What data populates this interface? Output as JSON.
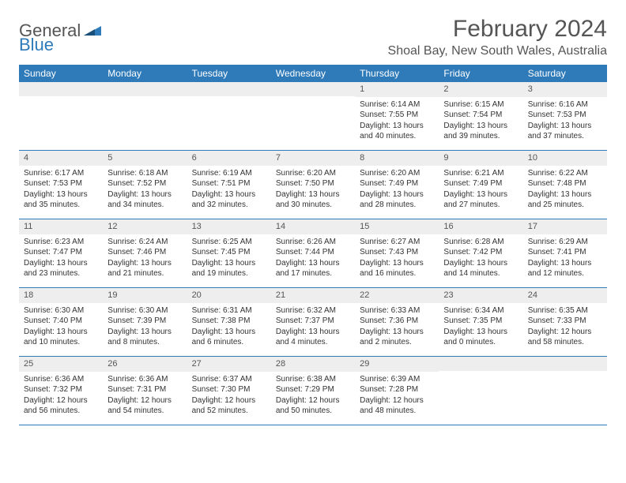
{
  "logo": {
    "general": "General",
    "blue": "Blue"
  },
  "header": {
    "month_title": "February 2024",
    "location": "Shoal Bay, New South Wales, Australia"
  },
  "weekdays": [
    "Sunday",
    "Monday",
    "Tuesday",
    "Wednesday",
    "Thursday",
    "Friday",
    "Saturday"
  ],
  "colors": {
    "header_bg": "#2f7ab9",
    "daynum_bg": "#eeeeee",
    "border": "#2f7ab9"
  },
  "weeks": [
    [
      null,
      null,
      null,
      null,
      {
        "num": "1",
        "sunrise": "Sunrise: 6:14 AM",
        "sunset": "Sunset: 7:55 PM",
        "daylight": "Daylight: 13 hours and 40 minutes."
      },
      {
        "num": "2",
        "sunrise": "Sunrise: 6:15 AM",
        "sunset": "Sunset: 7:54 PM",
        "daylight": "Daylight: 13 hours and 39 minutes."
      },
      {
        "num": "3",
        "sunrise": "Sunrise: 6:16 AM",
        "sunset": "Sunset: 7:53 PM",
        "daylight": "Daylight: 13 hours and 37 minutes."
      }
    ],
    [
      {
        "num": "4",
        "sunrise": "Sunrise: 6:17 AM",
        "sunset": "Sunset: 7:53 PM",
        "daylight": "Daylight: 13 hours and 35 minutes."
      },
      {
        "num": "5",
        "sunrise": "Sunrise: 6:18 AM",
        "sunset": "Sunset: 7:52 PM",
        "daylight": "Daylight: 13 hours and 34 minutes."
      },
      {
        "num": "6",
        "sunrise": "Sunrise: 6:19 AM",
        "sunset": "Sunset: 7:51 PM",
        "daylight": "Daylight: 13 hours and 32 minutes."
      },
      {
        "num": "7",
        "sunrise": "Sunrise: 6:20 AM",
        "sunset": "Sunset: 7:50 PM",
        "daylight": "Daylight: 13 hours and 30 minutes."
      },
      {
        "num": "8",
        "sunrise": "Sunrise: 6:20 AM",
        "sunset": "Sunset: 7:49 PM",
        "daylight": "Daylight: 13 hours and 28 minutes."
      },
      {
        "num": "9",
        "sunrise": "Sunrise: 6:21 AM",
        "sunset": "Sunset: 7:49 PM",
        "daylight": "Daylight: 13 hours and 27 minutes."
      },
      {
        "num": "10",
        "sunrise": "Sunrise: 6:22 AM",
        "sunset": "Sunset: 7:48 PM",
        "daylight": "Daylight: 13 hours and 25 minutes."
      }
    ],
    [
      {
        "num": "11",
        "sunrise": "Sunrise: 6:23 AM",
        "sunset": "Sunset: 7:47 PM",
        "daylight": "Daylight: 13 hours and 23 minutes."
      },
      {
        "num": "12",
        "sunrise": "Sunrise: 6:24 AM",
        "sunset": "Sunset: 7:46 PM",
        "daylight": "Daylight: 13 hours and 21 minutes."
      },
      {
        "num": "13",
        "sunrise": "Sunrise: 6:25 AM",
        "sunset": "Sunset: 7:45 PM",
        "daylight": "Daylight: 13 hours and 19 minutes."
      },
      {
        "num": "14",
        "sunrise": "Sunrise: 6:26 AM",
        "sunset": "Sunset: 7:44 PM",
        "daylight": "Daylight: 13 hours and 17 minutes."
      },
      {
        "num": "15",
        "sunrise": "Sunrise: 6:27 AM",
        "sunset": "Sunset: 7:43 PM",
        "daylight": "Daylight: 13 hours and 16 minutes."
      },
      {
        "num": "16",
        "sunrise": "Sunrise: 6:28 AM",
        "sunset": "Sunset: 7:42 PM",
        "daylight": "Daylight: 13 hours and 14 minutes."
      },
      {
        "num": "17",
        "sunrise": "Sunrise: 6:29 AM",
        "sunset": "Sunset: 7:41 PM",
        "daylight": "Daylight: 13 hours and 12 minutes."
      }
    ],
    [
      {
        "num": "18",
        "sunrise": "Sunrise: 6:30 AM",
        "sunset": "Sunset: 7:40 PM",
        "daylight": "Daylight: 13 hours and 10 minutes."
      },
      {
        "num": "19",
        "sunrise": "Sunrise: 6:30 AM",
        "sunset": "Sunset: 7:39 PM",
        "daylight": "Daylight: 13 hours and 8 minutes."
      },
      {
        "num": "20",
        "sunrise": "Sunrise: 6:31 AM",
        "sunset": "Sunset: 7:38 PM",
        "daylight": "Daylight: 13 hours and 6 minutes."
      },
      {
        "num": "21",
        "sunrise": "Sunrise: 6:32 AM",
        "sunset": "Sunset: 7:37 PM",
        "daylight": "Daylight: 13 hours and 4 minutes."
      },
      {
        "num": "22",
        "sunrise": "Sunrise: 6:33 AM",
        "sunset": "Sunset: 7:36 PM",
        "daylight": "Daylight: 13 hours and 2 minutes."
      },
      {
        "num": "23",
        "sunrise": "Sunrise: 6:34 AM",
        "sunset": "Sunset: 7:35 PM",
        "daylight": "Daylight: 13 hours and 0 minutes."
      },
      {
        "num": "24",
        "sunrise": "Sunrise: 6:35 AM",
        "sunset": "Sunset: 7:33 PM",
        "daylight": "Daylight: 12 hours and 58 minutes."
      }
    ],
    [
      {
        "num": "25",
        "sunrise": "Sunrise: 6:36 AM",
        "sunset": "Sunset: 7:32 PM",
        "daylight": "Daylight: 12 hours and 56 minutes."
      },
      {
        "num": "26",
        "sunrise": "Sunrise: 6:36 AM",
        "sunset": "Sunset: 7:31 PM",
        "daylight": "Daylight: 12 hours and 54 minutes."
      },
      {
        "num": "27",
        "sunrise": "Sunrise: 6:37 AM",
        "sunset": "Sunset: 7:30 PM",
        "daylight": "Daylight: 12 hours and 52 minutes."
      },
      {
        "num": "28",
        "sunrise": "Sunrise: 6:38 AM",
        "sunset": "Sunset: 7:29 PM",
        "daylight": "Daylight: 12 hours and 50 minutes."
      },
      {
        "num": "29",
        "sunrise": "Sunrise: 6:39 AM",
        "sunset": "Sunset: 7:28 PM",
        "daylight": "Daylight: 12 hours and 48 minutes."
      },
      null,
      null
    ]
  ]
}
